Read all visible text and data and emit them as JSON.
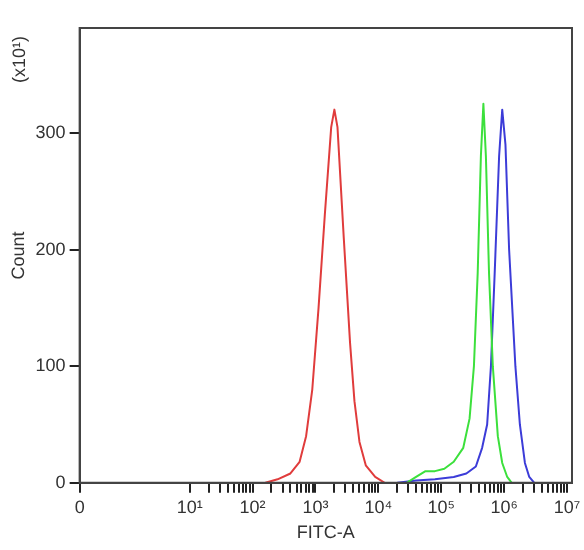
{
  "chart_data": {
    "type": "line",
    "xlabel": "FITC-A",
    "ylabel": "Count",
    "annotations": [
      "(x10¹)"
    ],
    "log": "x",
    "grid": false,
    "legend": false,
    "marker": "none",
    "xlim": [
      0,
      12000000
    ],
    "ylim": [
      0,
      390
    ],
    "xticks": [
      {
        "value": 0,
        "label": "0"
      },
      {
        "value": 10,
        "label": "10¹"
      },
      {
        "value": 100,
        "label": "10²"
      },
      {
        "value": 1000,
        "label": "10³"
      },
      {
        "value": 10000,
        "label": "10⁴"
      },
      {
        "value": 100000,
        "label": "10⁵"
      },
      {
        "value": 1000000,
        "label": "10⁶"
      },
      {
        "value": 10000000,
        "label": "10⁷"
      },
      {
        "value": 20,
        "label": null
      },
      {
        "value": 30,
        "label": null
      },
      {
        "value": 40,
        "label": null
      },
      {
        "value": 50,
        "label": null
      },
      {
        "value": 60,
        "label": null
      },
      {
        "value": 70,
        "label": null
      },
      {
        "value": 80,
        "label": null
      },
      {
        "value": 90,
        "label": null
      },
      {
        "value": 200,
        "label": null
      },
      {
        "value": 300,
        "label": null
      },
      {
        "value": 400,
        "label": null
      },
      {
        "value": 500,
        "label": null
      },
      {
        "value": 600,
        "label": null
      },
      {
        "value": 700,
        "label": null
      },
      {
        "value": 800,
        "label": null
      },
      {
        "value": 900,
        "label": null
      },
      {
        "value": 2000,
        "label": null
      },
      {
        "value": 3000,
        "label": null
      },
      {
        "value": 4000,
        "label": null
      },
      {
        "value": 5000,
        "label": null
      },
      {
        "value": 6000,
        "label": null
      },
      {
        "value": 7000,
        "label": null
      },
      {
        "value": 8000,
        "label": null
      },
      {
        "value": 9000,
        "label": null
      },
      {
        "value": 20000,
        "label": null
      },
      {
        "value": 30000,
        "label": null
      },
      {
        "value": 40000,
        "label": null
      },
      {
        "value": 50000,
        "label": null
      },
      {
        "value": 60000,
        "label": null
      },
      {
        "value": 70000,
        "label": null
      },
      {
        "value": 80000,
        "label": null
      },
      {
        "value": 90000,
        "label": null
      },
      {
        "value": 200000,
        "label": null
      },
      {
        "value": 300000,
        "label": null
      },
      {
        "value": 400000,
        "label": null
      },
      {
        "value": 500000,
        "label": null
      },
      {
        "value": 600000,
        "label": null
      },
      {
        "value": 700000,
        "label": null
      },
      {
        "value": 800000,
        "label": null
      },
      {
        "value": 900000,
        "label": null
      },
      {
        "value": 2000000,
        "label": null
      },
      {
        "value": 3000000,
        "label": null
      },
      {
        "value": 4000000,
        "label": null
      },
      {
        "value": 5000000,
        "label": null
      },
      {
        "value": 6000000,
        "label": null
      },
      {
        "value": 7000000,
        "label": null
      },
      {
        "value": 8000000,
        "label": null
      },
      {
        "value": 9000000,
        "label": null
      }
    ],
    "yticks": [
      0,
      100,
      200,
      300
    ],
    "series": [
      {
        "color": "#e03c3c",
        "x": [
          160,
          250,
          400,
          560,
          710,
          890,
          1120,
          1410,
          1780,
          2000,
          2240,
          2820,
          3550,
          4170,
          5010,
          6310,
          8910,
          12600
        ],
        "values": [
          0,
          3,
          8,
          18,
          40,
          80,
          150,
          230,
          305,
          320,
          305,
          210,
          120,
          70,
          35,
          15,
          5,
          0
        ]
      },
      {
        "color": "#3ce03c",
        "x": [
          28200,
          39800,
          56200,
          79400,
          112000,
          158000,
          224000,
          282000,
          331000,
          380000,
          427000,
          468000,
          513000,
          575000,
          661000,
          794000,
          933000,
          1120000,
          1320000
        ],
        "values": [
          0,
          5,
          10,
          10,
          12,
          18,
          30,
          55,
          100,
          180,
          280,
          325,
          280,
          180,
          100,
          40,
          17,
          5,
          0
        ]
      },
      {
        "color": "#3c3cd8",
        "x": [
          20000,
          39800,
          79400,
          158000,
          251000,
          355000,
          447000,
          537000,
          617000,
          708000,
          832000,
          933000,
          1050000,
          1200000,
          1510000,
          1780000,
          2140000,
          2510000,
          3020000
        ],
        "values": [
          0,
          2,
          3,
          5,
          8,
          14,
          30,
          50,
          100,
          180,
          280,
          320,
          290,
          200,
          100,
          50,
          17,
          5,
          0
        ]
      }
    ]
  }
}
